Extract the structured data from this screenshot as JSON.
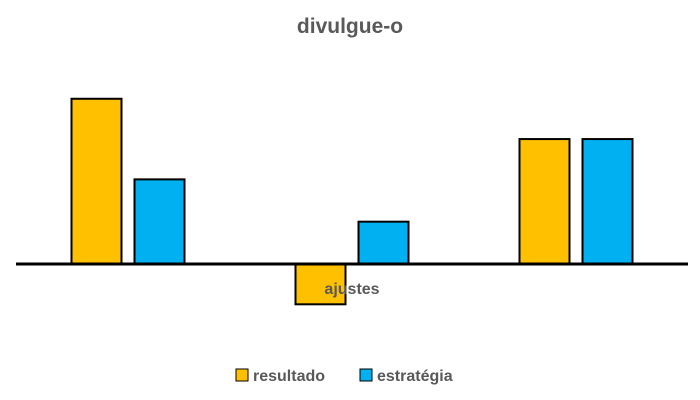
{
  "chart_data": {
    "type": "bar",
    "title": "divulgue-o",
    "xlabel": "",
    "ylabel": "",
    "categories": [
      "",
      "ajustes",
      ""
    ],
    "series": [
      {
        "name": "resultado",
        "color": "#FFC000",
        "values": [
          41,
          -10,
          31
        ]
      },
      {
        "name": "estratégia",
        "color": "#00B0F0",
        "values": [
          21,
          10.5,
          31
        ]
      }
    ],
    "ylim": [
      -20,
      55
    ],
    "grid": false,
    "legend": "bottom"
  }
}
